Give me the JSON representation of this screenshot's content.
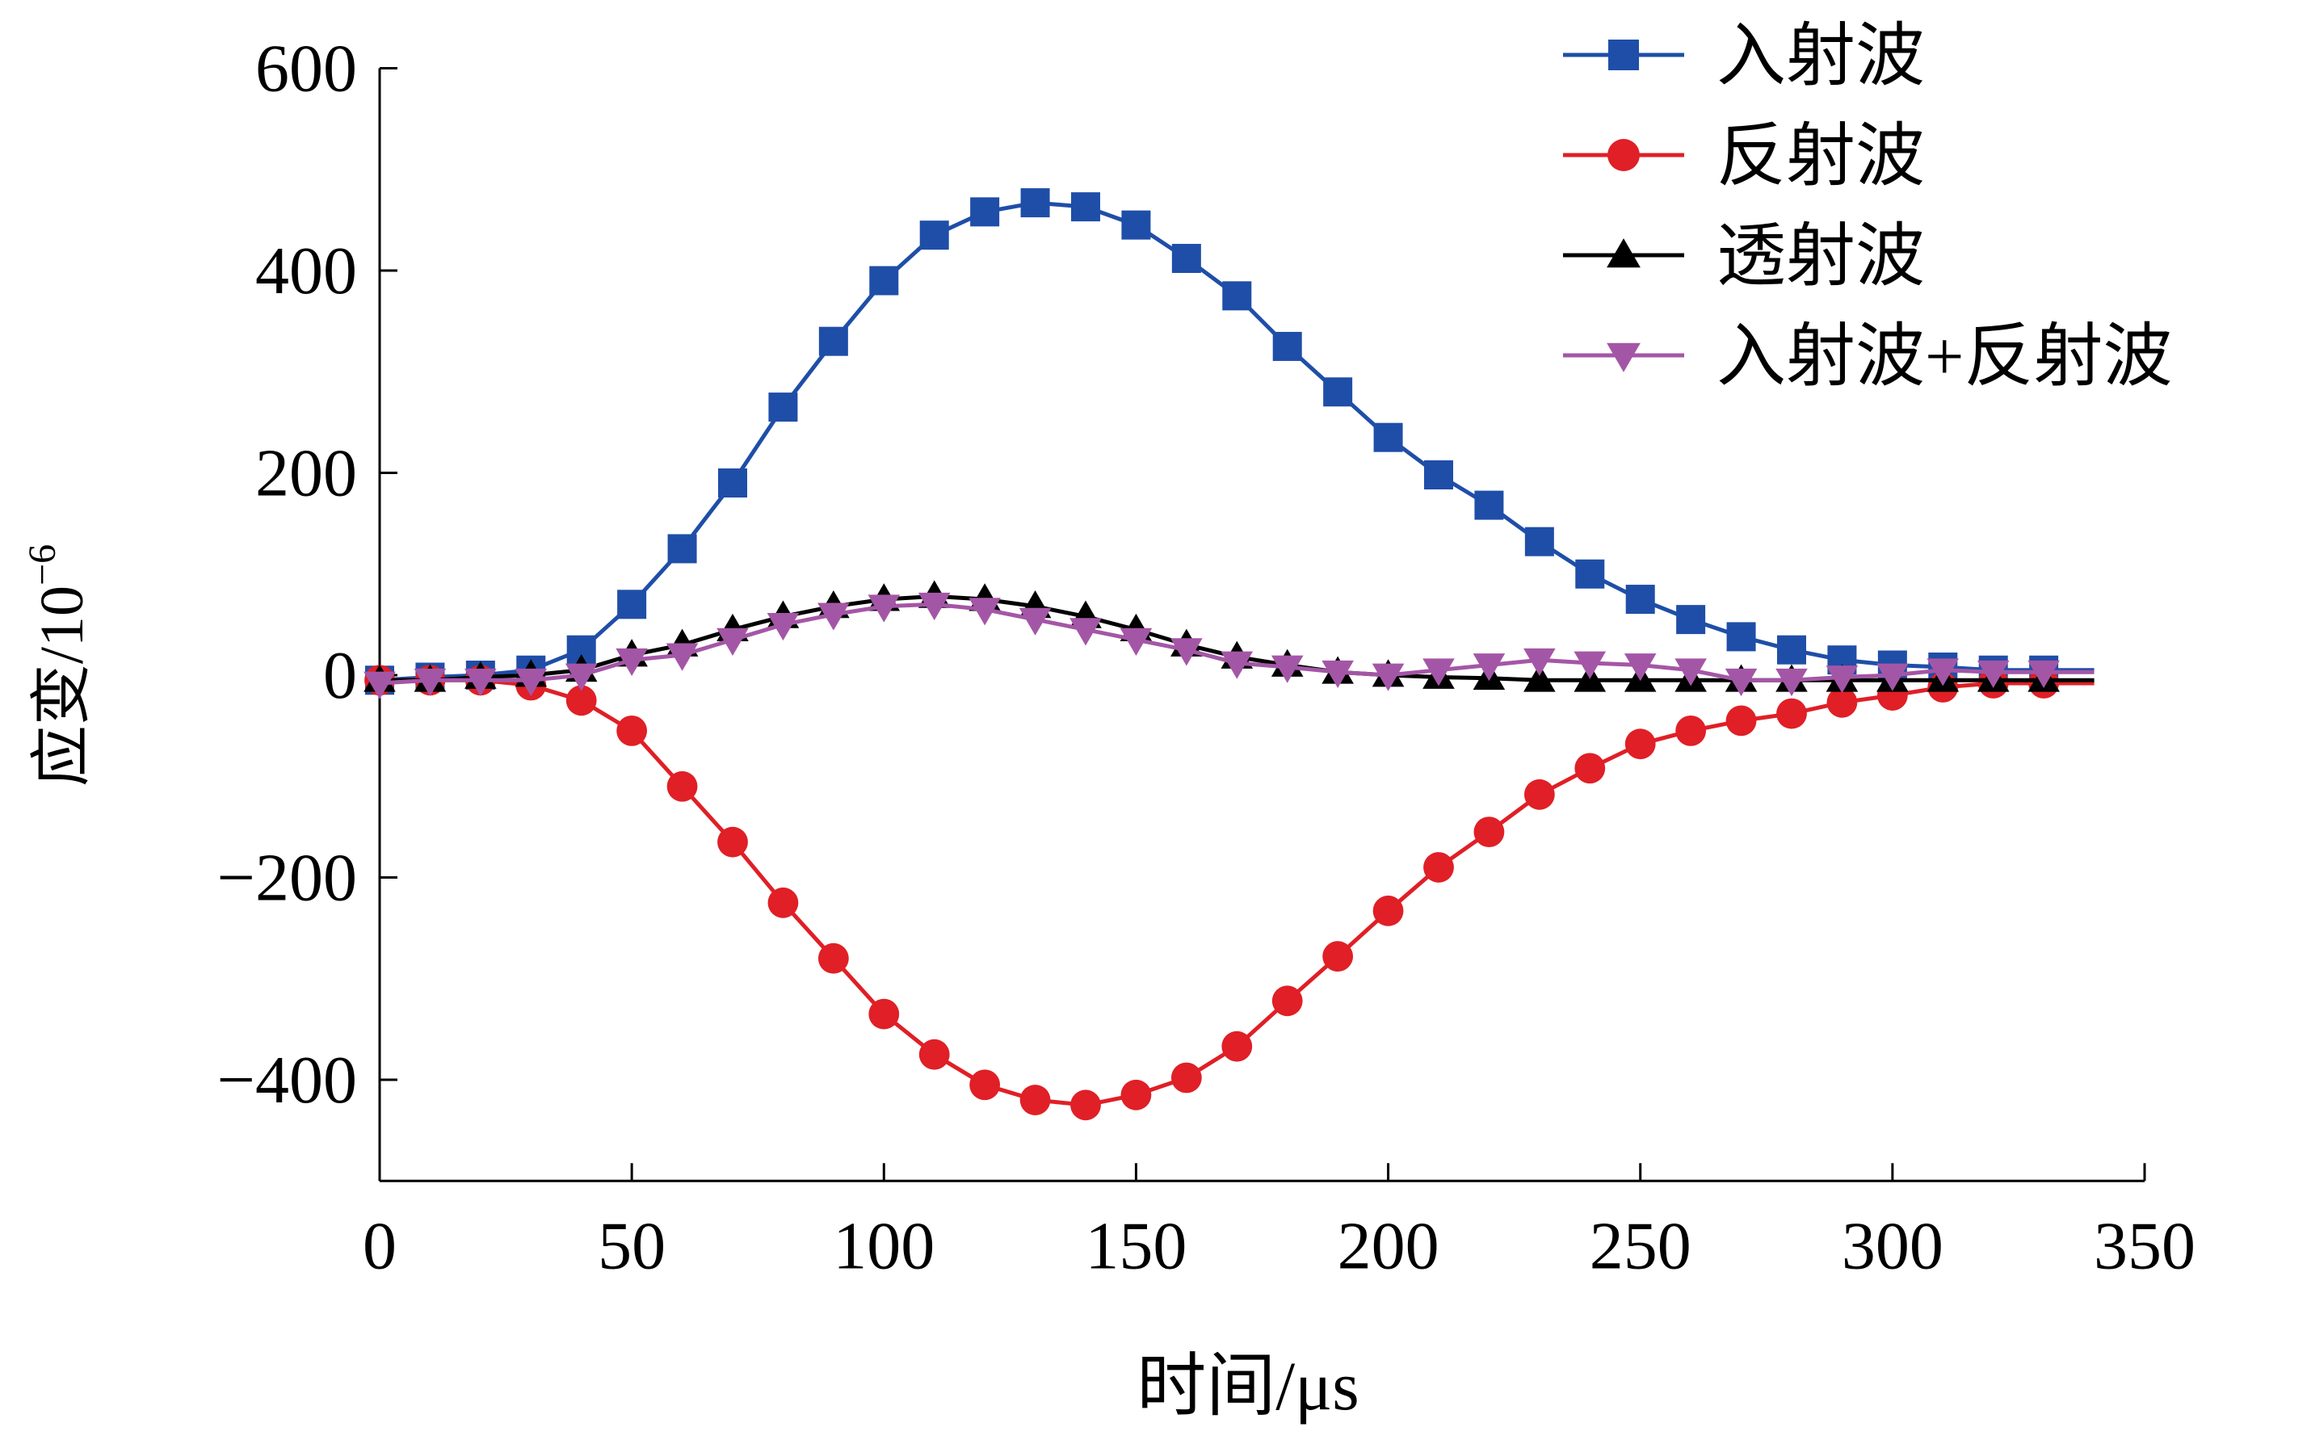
{
  "chart_data": {
    "type": "line",
    "xlabel": "时间/μs",
    "ylabel_main": "应变/10",
    "ylabel_exp": "−6",
    "xlim": [
      0,
      350
    ],
    "ylim": [
      -500,
      600
    ],
    "xticks": [
      0,
      50,
      100,
      150,
      200,
      250,
      300,
      350
    ],
    "xtick_labels": [
      "0",
      "50",
      "100",
      "150",
      "200",
      "250",
      "300",
      "350"
    ],
    "yticks": [
      600,
      400,
      200,
      0,
      -200,
      -400
    ],
    "ytick_labels": [
      "600",
      "400",
      "200",
      "0",
      "−200",
      "−400"
    ],
    "grid": false,
    "legend_position": "top-right",
    "x": [
      0,
      10,
      20,
      30,
      40,
      50,
      60,
      70,
      80,
      90,
      100,
      110,
      120,
      130,
      140,
      150,
      160,
      170,
      180,
      190,
      200,
      210,
      220,
      230,
      240,
      250,
      260,
      270,
      280,
      290,
      300,
      310,
      320,
      330
    ],
    "series": [
      {
        "name": "入射波",
        "color": "#1f4ea8",
        "marker": "square",
        "values": [
          -5,
          -2,
          0,
          5,
          25,
          70,
          125,
          190,
          265,
          330,
          390,
          435,
          458,
          467,
          463,
          445,
          412,
          375,
          325,
          280,
          235,
          198,
          168,
          132,
          100,
          75,
          55,
          38,
          25,
          15,
          10,
          8,
          5,
          5
        ]
      },
      {
        "name": "反射波",
        "color": "#e01f26",
        "marker": "circle",
        "values": [
          -5,
          -5,
          -5,
          -10,
          -25,
          -55,
          -110,
          -165,
          -225,
          -280,
          -335,
          -375,
          -405,
          -420,
          -425,
          -415,
          -398,
          -367,
          -322,
          -278,
          -233,
          -190,
          -155,
          -118,
          -92,
          -68,
          -55,
          -45,
          -38,
          -27,
          -20,
          -12,
          -8,
          -8
        ]
      },
      {
        "name": "透射波",
        "color": "#000000",
        "marker": "triangle-up",
        "values": [
          -5,
          -5,
          -2,
          0,
          5,
          20,
          30,
          45,
          58,
          68,
          75,
          78,
          75,
          68,
          58,
          45,
          30,
          18,
          10,
          3,
          0,
          -2,
          -3,
          -5,
          -5,
          -5,
          -5,
          -5,
          -5,
          -5,
          -5,
          -5,
          -5,
          -5
        ]
      },
      {
        "name": "入射波+反射波",
        "color": "#a456a6",
        "marker": "triangle-down",
        "values": [
          -8,
          -5,
          -5,
          -5,
          0,
          15,
          20,
          35,
          50,
          60,
          68,
          70,
          65,
          55,
          45,
          35,
          25,
          12,
          8,
          3,
          0,
          5,
          10,
          15,
          12,
          10,
          5,
          -5,
          -5,
          -2,
          0,
          5,
          3,
          3
        ]
      }
    ]
  }
}
